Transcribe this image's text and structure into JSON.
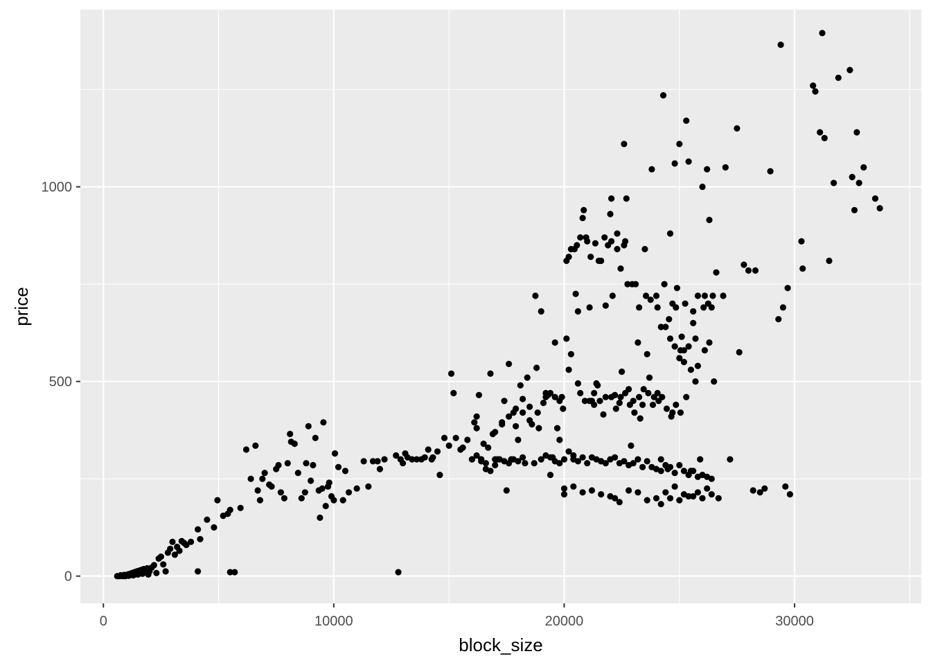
{
  "chart_data": {
    "type": "scatter",
    "title": "",
    "xlabel": "block_size",
    "ylabel": "price",
    "xlim": [
      -1000,
      35500
    ],
    "ylim": [
      -70,
      1455
    ],
    "x_ticks": [
      0,
      10000,
      20000,
      30000
    ],
    "x_tick_labels": [
      "0",
      "10000",
      "20000",
      "30000"
    ],
    "y_ticks": [
      0,
      500,
      1000
    ],
    "y_tick_labels": [
      "0",
      "500",
      "1000"
    ],
    "grid": true,
    "legend": "none",
    "style": {
      "panel_bg": "#ebebeb",
      "grid_major": "#ffffff",
      "point_color": "#000000"
    },
    "points": [
      [
        600,
        0
      ],
      [
        700,
        0
      ],
      [
        750,
        2
      ],
      [
        800,
        1
      ],
      [
        850,
        0
      ],
      [
        900,
        3
      ],
      [
        950,
        0
      ],
      [
        1000,
        2
      ],
      [
        1050,
        4
      ],
      [
        1100,
        1
      ],
      [
        1150,
        6
      ],
      [
        1200,
        3
      ],
      [
        1250,
        8
      ],
      [
        1300,
        2
      ],
      [
        1350,
        10
      ],
      [
        1400,
        5
      ],
      [
        1450,
        12
      ],
      [
        1500,
        4
      ],
      [
        1550,
        14
      ],
      [
        1600,
        8
      ],
      [
        1650,
        16
      ],
      [
        1700,
        6
      ],
      [
        1750,
        18
      ],
      [
        1800,
        10
      ],
      [
        1850,
        14
      ],
      [
        1900,
        20
      ],
      [
        1950,
        4
      ],
      [
        2000,
        12
      ],
      [
        2100,
        22
      ],
      [
        2200,
        28
      ],
      [
        2300,
        8
      ],
      [
        2400,
        45
      ],
      [
        2500,
        50
      ],
      [
        2600,
        30
      ],
      [
        2700,
        12
      ],
      [
        2800,
        60
      ],
      [
        2900,
        70
      ],
      [
        3000,
        88
      ],
      [
        3100,
        55
      ],
      [
        3200,
        75
      ],
      [
        3300,
        65
      ],
      [
        3400,
        90
      ],
      [
        3500,
        85
      ],
      [
        3600,
        80
      ],
      [
        3800,
        88
      ],
      [
        4100,
        120
      ],
      [
        4100,
        12
      ],
      [
        4200,
        95
      ],
      [
        4500,
        145
      ],
      [
        4800,
        125
      ],
      [
        4950,
        195
      ],
      [
        5200,
        155
      ],
      [
        5400,
        160
      ],
      [
        5500,
        170
      ],
      [
        5500,
        10
      ],
      [
        5700,
        10
      ],
      [
        5950,
        175
      ],
      [
        6200,
        325
      ],
      [
        6400,
        250
      ],
      [
        6600,
        335
      ],
      [
        6700,
        220
      ],
      [
        6800,
        195
      ],
      [
        6900,
        250
      ],
      [
        7000,
        265
      ],
      [
        7200,
        235
      ],
      [
        7300,
        230
      ],
      [
        7500,
        275
      ],
      [
        7600,
        285
      ],
      [
        7700,
        215
      ],
      [
        7850,
        200
      ],
      [
        8000,
        290
      ],
      [
        8100,
        365
      ],
      [
        8150,
        345
      ],
      [
        8300,
        340
      ],
      [
        8450,
        265
      ],
      [
        8600,
        200
      ],
      [
        8750,
        215
      ],
      [
        8800,
        290
      ],
      [
        8900,
        385
      ],
      [
        9000,
        245
      ],
      [
        9100,
        285
      ],
      [
        9200,
        355
      ],
      [
        9350,
        220
      ],
      [
        9400,
        150
      ],
      [
        9500,
        225
      ],
      [
        9550,
        395
      ],
      [
        9650,
        180
      ],
      [
        9750,
        230
      ],
      [
        9800,
        240
      ],
      [
        9900,
        205
      ],
      [
        10000,
        195
      ],
      [
        10050,
        315
      ],
      [
        10200,
        280
      ],
      [
        10400,
        195
      ],
      [
        10500,
        270
      ],
      [
        10650,
        215
      ],
      [
        11000,
        225
      ],
      [
        11300,
        295
      ],
      [
        11500,
        230
      ],
      [
        11700,
        295
      ],
      [
        11900,
        295
      ],
      [
        12000,
        275
      ],
      [
        12200,
        300
      ],
      [
        12700,
        310
      ],
      [
        12800,
        10
      ],
      [
        12900,
        300
      ],
      [
        13000,
        290
      ],
      [
        13100,
        315
      ],
      [
        13200,
        305
      ],
      [
        13400,
        300
      ],
      [
        13600,
        300
      ],
      [
        13800,
        300
      ],
      [
        13950,
        305
      ],
      [
        14100,
        325
      ],
      [
        14250,
        300
      ],
      [
        14300,
        305
      ],
      [
        14500,
        320
      ],
      [
        14600,
        260
      ],
      [
        14800,
        355
      ],
      [
        15000,
        335
      ],
      [
        15100,
        520
      ],
      [
        15200,
        470
      ],
      [
        15300,
        355
      ],
      [
        15500,
        325
      ],
      [
        15600,
        330
      ],
      [
        15800,
        350
      ],
      [
        16000,
        300
      ],
      [
        16100,
        395
      ],
      [
        16200,
        410
      ],
      [
        16300,
        465
      ],
      [
        16400,
        295
      ],
      [
        16500,
        340
      ],
      [
        16600,
        275
      ],
      [
        16800,
        520
      ],
      [
        16900,
        365
      ],
      [
        17000,
        285
      ],
      [
        17100,
        300
      ],
      [
        17300,
        395
      ],
      [
        17400,
        450
      ],
      [
        17500,
        220
      ],
      [
        17600,
        545
      ],
      [
        17700,
        300
      ],
      [
        17800,
        420
      ],
      [
        17900,
        385
      ],
      [
        18000,
        350
      ],
      [
        18100,
        490
      ],
      [
        18200,
        455
      ],
      [
        18300,
        290
      ],
      [
        18400,
        510
      ],
      [
        18500,
        435
      ],
      [
        18600,
        390
      ],
      [
        18700,
        290
      ],
      [
        18750,
        720
      ],
      [
        18800,
        535
      ],
      [
        18900,
        380
      ],
      [
        19000,
        680
      ],
      [
        19100,
        445
      ],
      [
        19200,
        460
      ],
      [
        19300,
        465
      ],
      [
        19400,
        260
      ],
      [
        19500,
        305
      ],
      [
        19600,
        600
      ],
      [
        19700,
        380
      ],
      [
        19800,
        350
      ],
      [
        19900,
        460
      ],
      [
        20000,
        210
      ],
      [
        20100,
        610
      ],
      [
        20200,
        530
      ],
      [
        20300,
        570
      ],
      [
        20400,
        300
      ],
      [
        20500,
        725
      ],
      [
        20600,
        680
      ],
      [
        20700,
        470
      ],
      [
        20800,
        920
      ],
      [
        20850,
        940
      ],
      [
        21000,
        860
      ],
      [
        21100,
        690
      ],
      [
        21200,
        450
      ],
      [
        21300,
        440
      ],
      [
        21400,
        495
      ],
      [
        21500,
        810
      ],
      [
        21600,
        295
      ],
      [
        21700,
        415
      ],
      [
        21800,
        695
      ],
      [
        21900,
        850
      ],
      [
        22000,
        930
      ],
      [
        22050,
        970
      ],
      [
        22100,
        720
      ],
      [
        22200,
        465
      ],
      [
        22300,
        880
      ],
      [
        22400,
        445
      ],
      [
        22500,
        525
      ],
      [
        22600,
        1110
      ],
      [
        22650,
        860
      ],
      [
        22700,
        970
      ],
      [
        22800,
        480
      ],
      [
        22900,
        335
      ],
      [
        23000,
        450
      ],
      [
        23100,
        750
      ],
      [
        23200,
        600
      ],
      [
        23300,
        405
      ],
      [
        23400,
        440
      ],
      [
        23500,
        840
      ],
      [
        23600,
        570
      ],
      [
        23700,
        510
      ],
      [
        23800,
        1045
      ],
      [
        23900,
        460
      ],
      [
        24000,
        720
      ],
      [
        24100,
        450
      ],
      [
        24200,
        300
      ],
      [
        24300,
        1235
      ],
      [
        24400,
        640
      ],
      [
        24500,
        275
      ],
      [
        24600,
        880
      ],
      [
        24700,
        420
      ],
      [
        24800,
        1060
      ],
      [
        24850,
        690
      ],
      [
        25000,
        1110
      ],
      [
        25100,
        615
      ],
      [
        25200,
        580
      ],
      [
        25300,
        1170
      ],
      [
        25400,
        1065
      ],
      [
        25500,
        270
      ],
      [
        25600,
        650
      ],
      [
        25700,
        500
      ],
      [
        25800,
        540
      ],
      [
        25900,
        300
      ],
      [
        26000,
        1000
      ],
      [
        26100,
        720
      ],
      [
        26200,
        1045
      ],
      [
        26300,
        915
      ],
      [
        26400,
        690
      ],
      [
        26500,
        500
      ],
      [
        26600,
        780
      ],
      [
        26700,
        200
      ],
      [
        26900,
        720
      ],
      [
        27000,
        1050
      ],
      [
        27200,
        300
      ],
      [
        27500,
        1150
      ],
      [
        27600,
        575
      ],
      [
        27800,
        800
      ],
      [
        28000,
        785
      ],
      [
        28200,
        220
      ],
      [
        28300,
        785
      ],
      [
        28500,
        215
      ],
      [
        28700,
        225
      ],
      [
        28950,
        1040
      ],
      [
        29300,
        660
      ],
      [
        29400,
        1365
      ],
      [
        29500,
        690
      ],
      [
        29600,
        230
      ],
      [
        29700,
        740
      ],
      [
        29800,
        210
      ],
      [
        30300,
        860
      ],
      [
        30350,
        790
      ],
      [
        30800,
        1260
      ],
      [
        30900,
        1245
      ],
      [
        31100,
        1140
      ],
      [
        31200,
        1395
      ],
      [
        31300,
        1125
      ],
      [
        31500,
        810
      ],
      [
        31700,
        1010
      ],
      [
        31900,
        1280
      ],
      [
        32400,
        1300
      ],
      [
        32500,
        1025
      ],
      [
        32600,
        940
      ],
      [
        32700,
        1140
      ],
      [
        32800,
        1010
      ],
      [
        33000,
        1050
      ],
      [
        33500,
        970
      ],
      [
        33700,
        945
      ],
      [
        20100,
        810
      ],
      [
        20300,
        840
      ],
      [
        20450,
        840
      ],
      [
        20550,
        850
      ],
      [
        20700,
        870
      ],
      [
        20950,
        870
      ],
      [
        21150,
        820
      ],
      [
        21350,
        855
      ],
      [
        21600,
        810
      ],
      [
        21750,
        870
      ],
      [
        22050,
        860
      ],
      [
        22300,
        840
      ],
      [
        22450,
        790
      ],
      [
        22600,
        850
      ],
      [
        22750,
        750
      ],
      [
        22950,
        750
      ],
      [
        23250,
        690
      ],
      [
        23550,
        720
      ],
      [
        23750,
        710
      ],
      [
        24050,
        690
      ],
      [
        24200,
        640
      ],
      [
        24350,
        750
      ],
      [
        24550,
        660
      ],
      [
        24700,
        700
      ],
      [
        24900,
        740
      ],
      [
        25050,
        580
      ],
      [
        25250,
        700
      ],
      [
        25400,
        590
      ],
      [
        25600,
        680
      ],
      [
        25800,
        720
      ],
      [
        26050,
        690
      ],
      [
        26250,
        700
      ],
      [
        26450,
        720
      ],
      [
        24600,
        610
      ],
      [
        24800,
        590
      ],
      [
        25000,
        560
      ],
      [
        25200,
        550
      ],
      [
        25500,
        530
      ],
      [
        25700,
        610
      ],
      [
        26100,
        580
      ],
      [
        26300,
        600
      ],
      [
        20200,
        820
      ],
      [
        20600,
        495
      ],
      [
        20900,
        450
      ],
      [
        21100,
        450
      ],
      [
        21300,
        470
      ],
      [
        21450,
        490
      ],
      [
        21550,
        450
      ],
      [
        21800,
        460
      ],
      [
        22050,
        460
      ],
      [
        22250,
        430
      ],
      [
        22450,
        460
      ],
      [
        22650,
        470
      ],
      [
        22850,
        440
      ],
      [
        23050,
        420
      ],
      [
        23250,
        460
      ],
      [
        23450,
        480
      ],
      [
        23650,
        470
      ],
      [
        23850,
        440
      ],
      [
        24050,
        470
      ],
      [
        24250,
        460
      ],
      [
        24450,
        430
      ],
      [
        24650,
        410
      ],
      [
        24850,
        440
      ],
      [
        25050,
        420
      ],
      [
        25300,
        460
      ],
      [
        19200,
        470
      ],
      [
        19400,
        470
      ],
      [
        19600,
        460
      ],
      [
        19800,
        450
      ],
      [
        19950,
        430
      ],
      [
        18850,
        420
      ],
      [
        18500,
        400
      ],
      [
        18200,
        420
      ],
      [
        17900,
        430
      ],
      [
        17600,
        410
      ],
      [
        17300,
        390
      ],
      [
        17000,
        370
      ],
      [
        16700,
        330
      ],
      [
        16400,
        300
      ],
      [
        16200,
        380
      ],
      [
        19000,
        300
      ],
      [
        19200,
        310
      ],
      [
        19400,
        305
      ],
      [
        19600,
        295
      ],
      [
        19800,
        290
      ],
      [
        20000,
        300
      ],
      [
        20200,
        320
      ],
      [
        20400,
        310
      ],
      [
        20600,
        295
      ],
      [
        20800,
        305
      ],
      [
        21000,
        290
      ],
      [
        21200,
        305
      ],
      [
        21400,
        300
      ],
      [
        21600,
        295
      ],
      [
        21800,
        290
      ],
      [
        22000,
        300
      ],
      [
        22200,
        305
      ],
      [
        22400,
        290
      ],
      [
        22600,
        295
      ],
      [
        22800,
        285
      ],
      [
        23000,
        290
      ],
      [
        23200,
        300
      ],
      [
        23400,
        280
      ],
      [
        23600,
        295
      ],
      [
        23800,
        280
      ],
      [
        24000,
        275
      ],
      [
        24200,
        270
      ],
      [
        24400,
        285
      ],
      [
        24600,
        280
      ],
      [
        24800,
        265
      ],
      [
        25000,
        285
      ],
      [
        25200,
        270
      ],
      [
        25400,
        260
      ],
      [
        25600,
        270
      ],
      [
        25800,
        255
      ],
      [
        26000,
        260
      ],
      [
        26200,
        255
      ],
      [
        26400,
        250
      ],
      [
        18200,
        305
      ],
      [
        18000,
        295
      ],
      [
        17800,
        300
      ],
      [
        17600,
        290
      ],
      [
        17400,
        295
      ],
      [
        17200,
        300
      ],
      [
        17000,
        300
      ],
      [
        16800,
        270
      ],
      [
        16600,
        290
      ],
      [
        16400,
        300
      ],
      [
        16200,
        310
      ],
      [
        16000,
        300
      ],
      [
        20000,
        225
      ],
      [
        20400,
        230
      ],
      [
        20800,
        215
      ],
      [
        21200,
        220
      ],
      [
        21600,
        210
      ],
      [
        22000,
        205
      ],
      [
        22400,
        190
      ],
      [
        22800,
        220
      ],
      [
        23200,
        215
      ],
      [
        23600,
        195
      ],
      [
        24000,
        200
      ],
      [
        24400,
        215
      ],
      [
        24800,
        230
      ],
      [
        25200,
        210
      ],
      [
        25600,
        205
      ],
      [
        26000,
        200
      ],
      [
        26400,
        210
      ],
      [
        24200,
        185
      ],
      [
        24600,
        200
      ],
      [
        25000,
        195
      ],
      [
        25400,
        205
      ],
      [
        25800,
        215
      ],
      [
        26200,
        225
      ],
      [
        22200,
        200
      ]
    ]
  }
}
